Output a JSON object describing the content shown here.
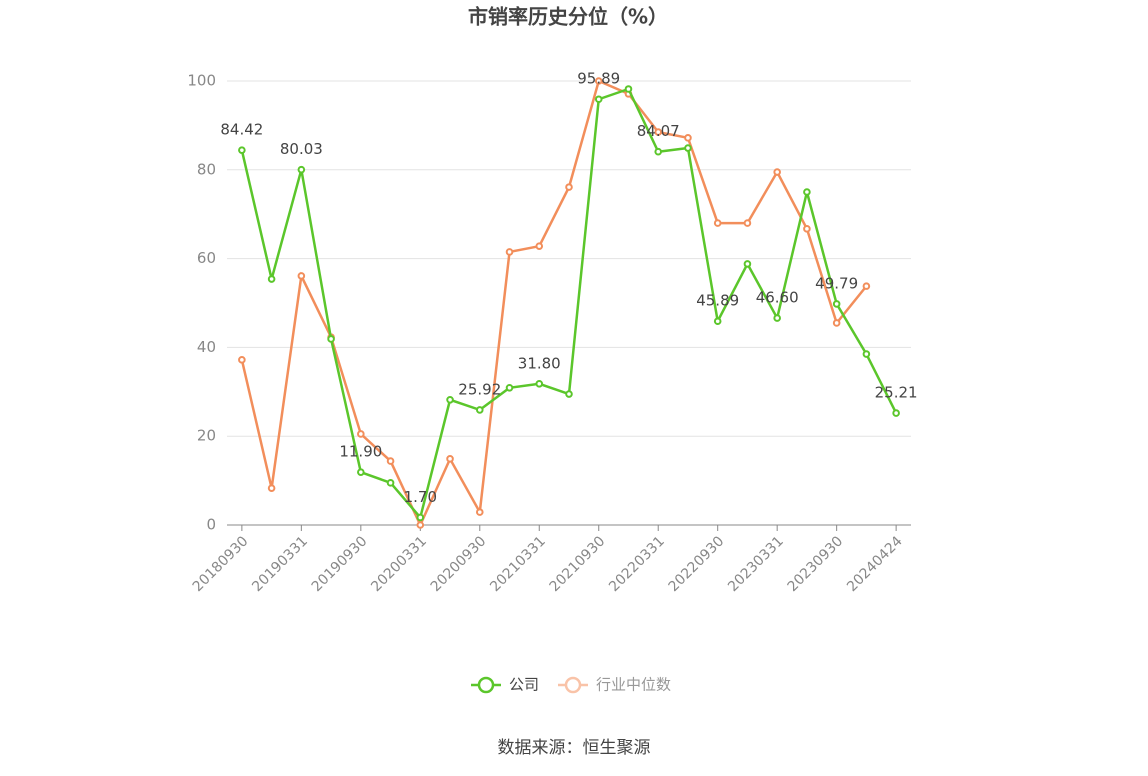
{
  "chart_data": {
    "type": "line",
    "title": "市销率历史分位（%）",
    "categories": [
      "20180930",
      null,
      "20190331",
      null,
      "20190930",
      null,
      "20200331",
      null,
      "20200930",
      null,
      "20210331",
      null,
      "20210930",
      null,
      "20220331",
      null,
      "20220930",
      null,
      "20230331",
      null,
      "20230930",
      null,
      "20240424"
    ],
    "series": [
      {
        "name": "公司",
        "color": "#5bc62b",
        "values": [
          84.42,
          55.4,
          80.03,
          41.9,
          11.9,
          9.5,
          1.7,
          28.2,
          25.92,
          30.9,
          31.8,
          29.5,
          95.89,
          98.2,
          84.07,
          84.9,
          45.89,
          58.8,
          46.6,
          75.0,
          49.79,
          38.5,
          25.21
        ],
        "value_labels": [
          "84.42",
          null,
          "80.03",
          null,
          "11.90",
          null,
          "1.70",
          null,
          "25.92",
          null,
          "31.80",
          null,
          "95.89",
          null,
          "84.07",
          null,
          "45.89",
          null,
          "46.60",
          null,
          "49.79",
          null,
          "25.21"
        ]
      },
      {
        "name": "行业中位数",
        "color": "#f28e5b",
        "values": [
          37.2,
          8.3,
          56.1,
          42.3,
          20.5,
          14.4,
          0.0,
          14.9,
          2.9,
          61.5,
          62.8,
          76.1,
          100,
          97.1,
          88.5,
          87.2,
          68.0,
          68.0,
          79.5,
          66.7,
          45.5,
          53.8,
          null
        ]
      }
    ],
    "ylim": [
      0,
      100
    ],
    "yticks": [
      0,
      20,
      40,
      60,
      80,
      100
    ],
    "grid": true,
    "legend": "bottom",
    "source": "数据来源：恒生聚源"
  }
}
